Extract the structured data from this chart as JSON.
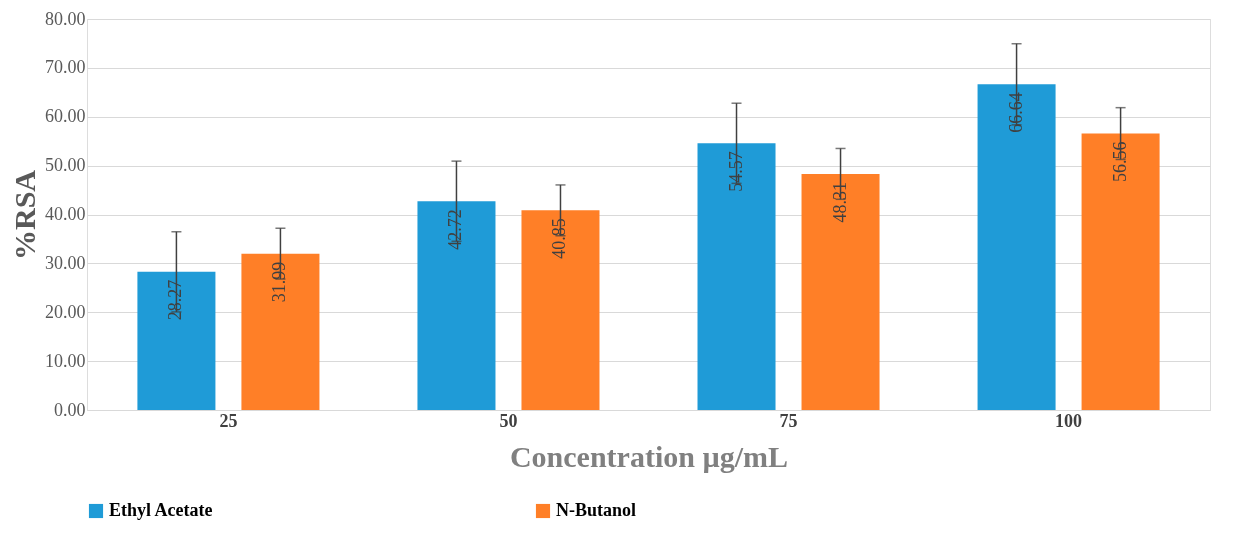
{
  "chart_data": {
    "type": "bar",
    "xlabel": "Concentration µg/mL",
    "ylabel": "%RSA",
    "categories": [
      "25",
      "50",
      "75",
      "100"
    ],
    "series": [
      {
        "name": "Ethyl Acetate",
        "color": "#1f9bd7",
        "values": [
          28.27,
          42.72,
          54.57,
          66.64
        ],
        "errors": [
          8.2,
          8.2,
          8.2,
          8.3
        ]
      },
      {
        "name": "N-Butanol",
        "color": "#ff7f27",
        "values": [
          31.99,
          40.85,
          48.31,
          56.56
        ],
        "errors": [
          5.2,
          5.2,
          5.2,
          5.3
        ]
      }
    ],
    "ylim": [
      0,
      80
    ],
    "yticks": [
      {
        "value": 0,
        "label": "0.00"
      },
      {
        "value": 10,
        "label": "10.00"
      },
      {
        "value": 20,
        "label": "20.00"
      },
      {
        "value": 30,
        "label": "30.00"
      },
      {
        "value": 40,
        "label": "40.00"
      },
      {
        "value": 50,
        "label": "50.00"
      },
      {
        "value": 60,
        "label": "60.00"
      },
      {
        "value": 70,
        "label": "70.00"
      },
      {
        "value": 80,
        "label": "80.00"
      }
    ],
    "grid": "y",
    "legend": "bottom",
    "data_labels": true
  }
}
